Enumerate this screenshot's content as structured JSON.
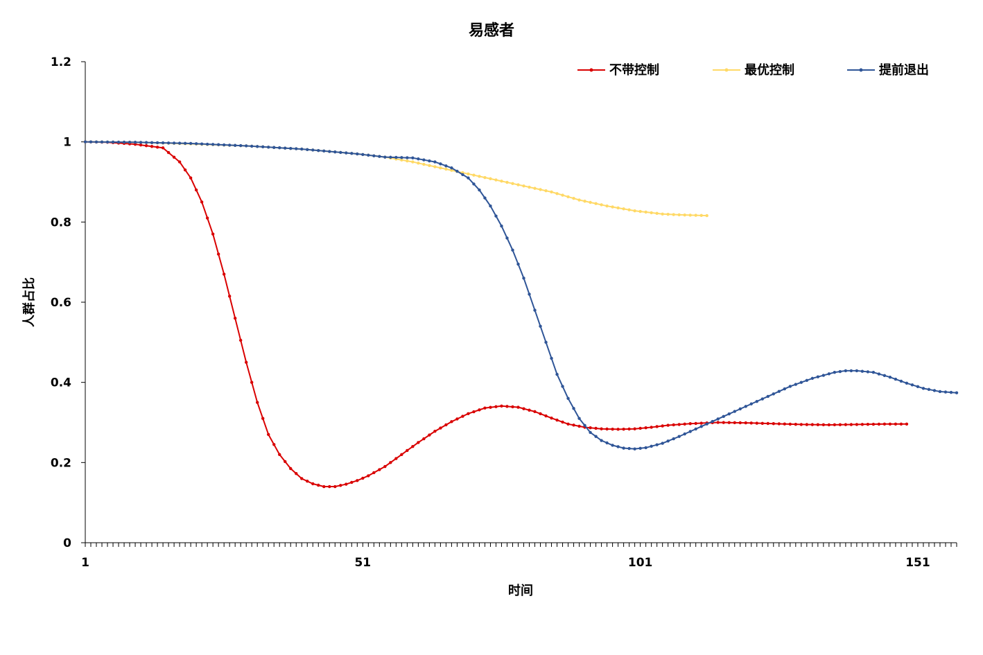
{
  "chart_data": {
    "type": "line",
    "title": "易感者",
    "xlabel": "时间",
    "ylabel": "人群占比",
    "x_start": 1,
    "x_end": 157,
    "xticks": [
      1,
      51,
      101,
      151
    ],
    "xtick_labels": [
      "1",
      "51",
      "101",
      "151"
    ],
    "ylim": [
      0,
      1.2
    ],
    "yticks": [
      0,
      0.2,
      0.4,
      0.6,
      0.8,
      1,
      1.2
    ],
    "ytick_labels": [
      "0",
      "0.2",
      "0.4",
      "0.6",
      "0.8",
      "1",
      "1.2"
    ],
    "grid": false,
    "legend_position": "top-right",
    "series": [
      {
        "name": "不带控制",
        "color": "#d90000",
        "keypoints": [
          [
            1,
            1.0
          ],
          [
            5,
            0.999
          ],
          [
            10,
            0.994
          ],
          [
            15,
            0.985
          ],
          [
            18,
            0.95
          ],
          [
            20,
            0.91
          ],
          [
            22,
            0.85
          ],
          [
            24,
            0.77
          ],
          [
            26,
            0.67
          ],
          [
            28,
            0.56
          ],
          [
            30,
            0.45
          ],
          [
            32,
            0.35
          ],
          [
            34,
            0.27
          ],
          [
            36,
            0.22
          ],
          [
            38,
            0.185
          ],
          [
            40,
            0.16
          ],
          [
            42,
            0.147
          ],
          [
            44,
            0.14
          ],
          [
            46,
            0.14
          ],
          [
            48,
            0.146
          ],
          [
            50,
            0.155
          ],
          [
            52,
            0.167
          ],
          [
            55,
            0.19
          ],
          [
            58,
            0.22
          ],
          [
            61,
            0.25
          ],
          [
            64,
            0.278
          ],
          [
            67,
            0.302
          ],
          [
            70,
            0.322
          ],
          [
            73,
            0.336
          ],
          [
            76,
            0.341
          ],
          [
            79,
            0.338
          ],
          [
            82,
            0.327
          ],
          [
            85,
            0.311
          ],
          [
            88,
            0.296
          ],
          [
            91,
            0.288
          ],
          [
            94,
            0.284
          ],
          [
            97,
            0.283
          ],
          [
            100,
            0.284
          ],
          [
            103,
            0.288
          ],
          [
            106,
            0.293
          ],
          [
            110,
            0.297
          ],
          [
            115,
            0.3
          ],
          [
            120,
            0.299
          ],
          [
            125,
            0.297
          ],
          [
            130,
            0.295
          ],
          [
            135,
            0.294
          ],
          [
            140,
            0.295
          ],
          [
            145,
            0.296
          ],
          [
            149,
            0.296
          ]
        ]
      },
      {
        "name": "最优控制",
        "color": "#ffd966",
        "keypoints": [
          [
            1,
            1.0
          ],
          [
            10,
            0.999
          ],
          [
            20,
            0.995
          ],
          [
            30,
            0.99
          ],
          [
            40,
            0.982
          ],
          [
            50,
            0.97
          ],
          [
            55,
            0.962
          ],
          [
            60,
            0.95
          ],
          [
            65,
            0.935
          ],
          [
            70,
            0.92
          ],
          [
            75,
            0.905
          ],
          [
            80,
            0.89
          ],
          [
            85,
            0.875
          ],
          [
            90,
            0.855
          ],
          [
            95,
            0.84
          ],
          [
            100,
            0.828
          ],
          [
            105,
            0.82
          ],
          [
            108,
            0.818
          ],
          [
            113,
            0.816
          ]
        ]
      },
      {
        "name": "提前退出",
        "color": "#2f5597",
        "keypoints": [
          [
            1,
            1.0
          ],
          [
            10,
            0.999
          ],
          [
            20,
            0.996
          ],
          [
            30,
            0.99
          ],
          [
            40,
            0.982
          ],
          [
            50,
            0.97
          ],
          [
            55,
            0.962
          ],
          [
            60,
            0.96
          ],
          [
            64,
            0.95
          ],
          [
            67,
            0.935
          ],
          [
            70,
            0.91
          ],
          [
            72,
            0.88
          ],
          [
            74,
            0.84
          ],
          [
            76,
            0.79
          ],
          [
            78,
            0.73
          ],
          [
            80,
            0.66
          ],
          [
            82,
            0.58
          ],
          [
            84,
            0.5
          ],
          [
            86,
            0.42
          ],
          [
            88,
            0.36
          ],
          [
            90,
            0.31
          ],
          [
            92,
            0.275
          ],
          [
            94,
            0.255
          ],
          [
            96,
            0.243
          ],
          [
            98,
            0.236
          ],
          [
            100,
            0.234
          ],
          [
            102,
            0.237
          ],
          [
            105,
            0.248
          ],
          [
            108,
            0.265
          ],
          [
            112,
            0.29
          ],
          [
            116,
            0.315
          ],
          [
            120,
            0.34
          ],
          [
            124,
            0.365
          ],
          [
            128,
            0.39
          ],
          [
            132,
            0.41
          ],
          [
            136,
            0.425
          ],
          [
            138,
            0.429
          ],
          [
            140,
            0.429
          ],
          [
            143,
            0.425
          ],
          [
            146,
            0.413
          ],
          [
            149,
            0.398
          ],
          [
            152,
            0.385
          ],
          [
            155,
            0.377
          ],
          [
            158,
            0.374
          ],
          [
            158,
            0.373
          ]
        ]
      }
    ]
  }
}
